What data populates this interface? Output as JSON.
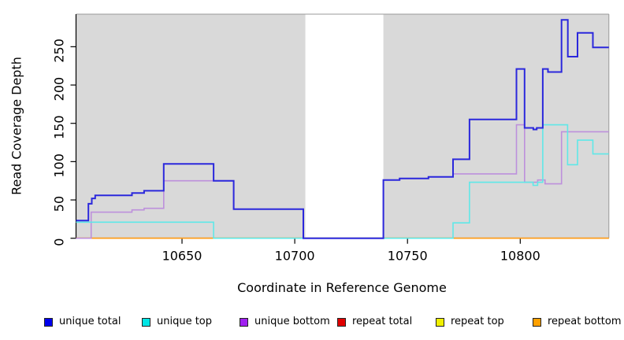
{
  "figure": {
    "plot_background": "#D9D9D9",
    "page_background": "#FFFFFF",
    "border_color": "#999999",
    "axis_color": "#000000",
    "tick_label_size": 16,
    "legend_item_lefts": [
      56,
      180,
      304,
      428,
      553,
      676
    ]
  },
  "chart_data": {
    "type": "line",
    "subtype": "step-after",
    "title": "",
    "xlabel": "Coordinate in Reference Genome",
    "ylabel": "Read Coverage Depth",
    "xlim": [
      10603,
      10839.3
    ],
    "ylim": [
      0,
      292.5
    ],
    "x_ticks": [
      10650,
      10700,
      10750,
      10800
    ],
    "y_ticks": [
      0,
      50,
      100,
      150,
      200,
      250
    ],
    "grid": "off",
    "legend_position": "bottom",
    "gap_region": {
      "from": 10704.7,
      "to": 10739.3,
      "color": "#FFFFFF"
    },
    "render_order": [
      "repeat total",
      "repeat top",
      "repeat bottom",
      "unique bottom",
      "unique top",
      "unique total"
    ],
    "series": [
      {
        "name": "unique total",
        "legend_color": "#0000EE",
        "stroke": "#2B28DC",
        "width": 2,
        "points": [
          [
            10603,
            23
          ],
          [
            10608.5,
            45
          ],
          [
            10610,
            52
          ],
          [
            10611.5,
            56
          ],
          [
            10627.8,
            59
          ],
          [
            10633.2,
            62
          ],
          [
            10641.9,
            97
          ],
          [
            10664,
            75
          ],
          [
            10672.9,
            38
          ],
          [
            10703.8,
            0
          ],
          [
            10739.3,
            76
          ],
          [
            10746.5,
            78
          ],
          [
            10759.3,
            80
          ],
          [
            10770.2,
            103
          ],
          [
            10777.5,
            155
          ],
          [
            10798.3,
            221
          ],
          [
            10801.9,
            144
          ],
          [
            10805.8,
            142
          ],
          [
            10807.3,
            144
          ],
          [
            10810,
            221
          ],
          [
            10812.3,
            217
          ],
          [
            10818.3,
            285
          ],
          [
            10821.1,
            237
          ],
          [
            10825.4,
            268
          ],
          [
            10832.2,
            249
          ]
        ]
      },
      {
        "name": "unique top",
        "legend_color": "#00E5E5",
        "stroke": "#5FE8E8",
        "width": 1.6,
        "points": [
          [
            10603,
            21
          ],
          [
            10664,
            0
          ],
          [
            10770.2,
            20
          ],
          [
            10777.5,
            73
          ],
          [
            10805.7,
            69
          ],
          [
            10807.7,
            73
          ],
          [
            10810,
            148
          ],
          [
            10821,
            96
          ],
          [
            10825.4,
            128
          ],
          [
            10832.2,
            110
          ]
        ]
      },
      {
        "name": "unique bottom",
        "legend_color": "#A020F0",
        "stroke": "#BD90DC",
        "width": 1.6,
        "points": [
          [
            10603,
            0
          ],
          [
            10609.7,
            34
          ],
          [
            10627.8,
            37
          ],
          [
            10633.2,
            39
          ],
          [
            10641.9,
            75
          ],
          [
            10672.9,
            38
          ],
          [
            10703.8,
            0
          ],
          [
            10739.3,
            76
          ],
          [
            10746.5,
            78
          ],
          [
            10759.3,
            80
          ],
          [
            10770.2,
            84
          ],
          [
            10798.3,
            148
          ],
          [
            10801.9,
            73
          ],
          [
            10807.7,
            76
          ],
          [
            10811,
            71
          ],
          [
            10818.3,
            139
          ]
        ]
      },
      {
        "name": "repeat total",
        "legend_color": "#E00000",
        "stroke": "#E05050",
        "width": 1.6,
        "points": [
          [
            10603,
            0
          ]
        ]
      },
      {
        "name": "repeat top",
        "legend_color": "#F0F000",
        "stroke": "#E8E840",
        "width": 1.6,
        "points": [
          [
            10603,
            0
          ]
        ]
      },
      {
        "name": "repeat bottom",
        "legend_color": "#FFA000",
        "stroke": "#FF9D1E",
        "width": 1.6,
        "points": [
          [
            10603,
            0
          ]
        ]
      }
    ]
  }
}
